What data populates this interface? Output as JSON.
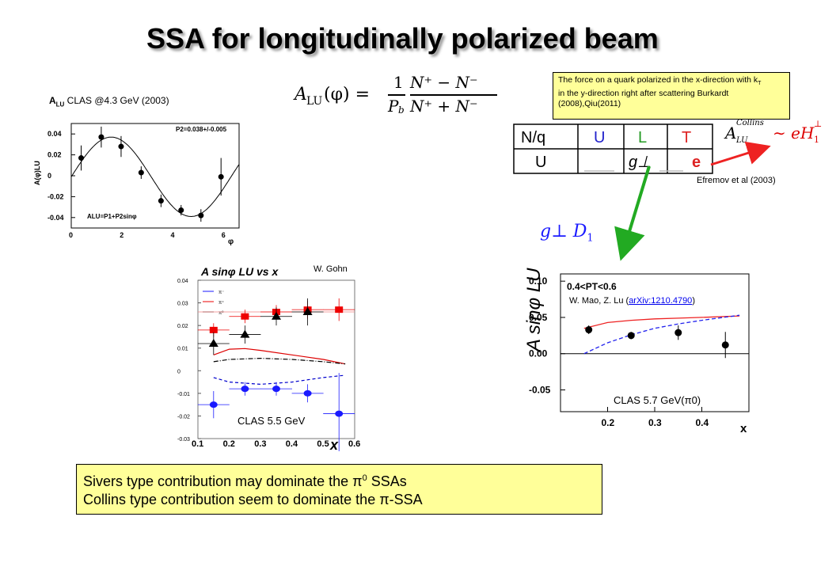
{
  "slide": {
    "title": "SSA for longitudinally polarized beam",
    "clas43_label": "A",
    "clas43_label_sub": "LU",
    "clas43_label_rest": " CLAS @4.3 GeV  (2003)",
    "formula": {
      "lhs": "A",
      "lhs_sub": "LU",
      "lhs_arg": "(φ) =",
      "frac1_num": "1",
      "frac1_den": "P",
      "frac1_den_sub": "b",
      "frac2_num": "N⁺ − N⁻",
      "frac2_den": "N⁺ + N⁻"
    },
    "force_box": {
      "line1": "The force on a quark polarized in the x-direction with k",
      "line1_sub": "T",
      "line2": "in the y-direction right after scattering Burkardt",
      "line3": "(2008),Qiu(2011)"
    },
    "collins_formula": {
      "lhs": "A",
      "lhs_sup": "Collins",
      "lhs_sub": "LU",
      "rhs": "∼ eH",
      "rhs_sup": "⊥",
      "rhs_sub": "1"
    },
    "efremov": "Efremov et al (2003)",
    "table": {
      "headers": [
        "N/q",
        "U",
        "L",
        "T"
      ],
      "row": [
        "U",
        "",
        "g⊥",
        "e"
      ]
    },
    "gperp_d1": "g⊥ D",
    "gperp_d1_sub": "1",
    "gohn_label": "W. Gohn",
    "clas55_label": "CLAS 5.5 GeV",
    "mao_label": "W. Mao, Z. Lu (",
    "mao_link": "arXiv:1210.4790",
    "mao_close": ")",
    "clas57_label": "CLAS 5.7 GeV(π0)",
    "summary": {
      "line1_pre": "Sivers type contribution may dominate the π",
      "line1_sup": "0",
      "line1_post": " SSAs",
      "line2": "Collins type contribution seem to dominate the π-SSA"
    }
  },
  "chart_data": [
    {
      "type": "scatter",
      "title": "",
      "ylabel": "A(φ)LU",
      "xlabel": "φ",
      "annotation": "P2=0.038+/-0.005",
      "fit_label": "ALU=P1+P2sinφ",
      "xlim": [
        0,
        6.6
      ],
      "ylim": [
        -0.05,
        0.05
      ],
      "xticks": [
        "0",
        "2",
        "4",
        "6"
      ],
      "yticks": [
        "0.04",
        "0.02",
        "0",
        "-0.02",
        "-0.04"
      ],
      "points": [
        {
          "x": 0.39,
          "y": 0.017,
          "err": 0.012
        },
        {
          "x": 1.18,
          "y": 0.037,
          "err": 0.01
        },
        {
          "x": 1.96,
          "y": 0.028,
          "err": 0.01
        },
        {
          "x": 2.75,
          "y": 0.003,
          "err": 0.006
        },
        {
          "x": 3.53,
          "y": -0.024,
          "err": 0.006
        },
        {
          "x": 4.32,
          "y": -0.033,
          "err": 0.005
        },
        {
          "x": 5.1,
          "y": -0.038,
          "err": 0.006
        },
        {
          "x": 5.89,
          "y": -0.001,
          "err": 0.018
        }
      ],
      "fit": {
        "p1": -0.001,
        "p2": 0.038
      }
    },
    {
      "type": "scatter",
      "title": "",
      "ylabel": "A sinφ LU vs x",
      "xlabel": "x",
      "xlim": [
        0.1,
        0.6
      ],
      "ylim": [
        -0.03,
        0.04
      ],
      "xticks": [
        "0.1",
        "0.2",
        "0.3",
        "0.4",
        "0.5",
        "0.6"
      ],
      "yticks": [
        "0.04",
        "0.03",
        "0.02",
        "0.01",
        "0",
        "-0.01",
        "-0.02",
        "-0.03"
      ],
      "legend": [
        "π⁻",
        "π⁺",
        "π⁰"
      ],
      "series": [
        {
          "name": "π⁺",
          "color": "#ee0000",
          "marker": "square",
          "points": [
            [
              0.15,
              0.018
            ],
            [
              0.25,
              0.024
            ],
            [
              0.35,
              0.026
            ],
            [
              0.45,
              0.027
            ],
            [
              0.55,
              0.027
            ]
          ],
          "err": [
            0.003,
            0.003,
            0.003,
            0.004,
            0.005
          ]
        },
        {
          "name": "π⁰",
          "color": "#000000",
          "marker": "triangle",
          "points": [
            [
              0.15,
              0.012
            ],
            [
              0.25,
              0.016
            ],
            [
              0.35,
              0.024
            ],
            [
              0.45,
              0.026
            ]
          ],
          "err": [
            0.005,
            0.004,
            0.004,
            0.006
          ]
        },
        {
          "name": "π⁻",
          "color": "#1a1aff",
          "marker": "circle",
          "points": [
            [
              0.15,
              -0.015
            ],
            [
              0.25,
              -0.008
            ],
            [
              0.35,
              -0.008
            ],
            [
              0.45,
              -0.01
            ],
            [
              0.55,
              -0.019
            ]
          ],
          "err": [
            0.006,
            0.003,
            0.003,
            0.004,
            0.018
          ]
        }
      ],
      "curves": [
        {
          "color": "#dd0000",
          "style": "solid",
          "points": [
            [
              0.15,
              0.007
            ],
            [
              0.2,
              0.0095
            ],
            [
              0.25,
              0.0098
            ],
            [
              0.3,
              0.009
            ],
            [
              0.4,
              0.007
            ],
            [
              0.5,
              0.005
            ],
            [
              0.57,
              0.003
            ]
          ]
        },
        {
          "color": "#000000",
          "style": "dashdot",
          "points": [
            [
              0.15,
              0.004
            ],
            [
              0.2,
              0.005
            ],
            [
              0.3,
              0.0055
            ],
            [
              0.4,
              0.005
            ],
            [
              0.5,
              0.004
            ],
            [
              0.57,
              0.003
            ]
          ]
        },
        {
          "color": "#0000cc",
          "style": "dashed",
          "points": [
            [
              0.15,
              -0.003
            ],
            [
              0.2,
              -0.005
            ],
            [
              0.3,
              -0.006
            ],
            [
              0.4,
              -0.005
            ],
            [
              0.5,
              -0.003
            ],
            [
              0.57,
              -0.002
            ]
          ]
        }
      ]
    },
    {
      "type": "scatter",
      "title": "",
      "annotation": "0.4<PT<0.6",
      "ylabel": "A sinφ LU",
      "xlabel": "x",
      "xlim": [
        0.1,
        0.5
      ],
      "ylim": [
        -0.08,
        0.11
      ],
      "xticks": [
        "0.2",
        "0.3",
        "0.4"
      ],
      "yticks": [
        "0.10",
        "0.05",
        "0.00",
        "-0.05"
      ],
      "points": [
        {
          "x": 0.16,
          "y": 0.033,
          "err": 0.006
        },
        {
          "x": 0.25,
          "y": 0.025,
          "err": 0.005
        },
        {
          "x": 0.35,
          "y": 0.029,
          "err": 0.01
        },
        {
          "x": 0.45,
          "y": 0.012,
          "err": 0.018
        }
      ],
      "curves": [
        {
          "color": "#ee2222",
          "style": "solid",
          "points": [
            [
              0.15,
              0.035
            ],
            [
              0.2,
              0.043
            ],
            [
              0.25,
              0.046
            ],
            [
              0.3,
              0.048
            ],
            [
              0.35,
              0.049
            ],
            [
              0.4,
              0.05
            ],
            [
              0.48,
              0.052
            ]
          ]
        },
        {
          "color": "#2222ee",
          "style": "dashed",
          "points": [
            [
              0.15,
              0.0
            ],
            [
              0.2,
              0.015
            ],
            [
              0.25,
              0.026
            ],
            [
              0.3,
              0.035
            ],
            [
              0.35,
              0.041
            ],
            [
              0.4,
              0.046
            ],
            [
              0.48,
              0.053
            ]
          ]
        }
      ]
    }
  ]
}
